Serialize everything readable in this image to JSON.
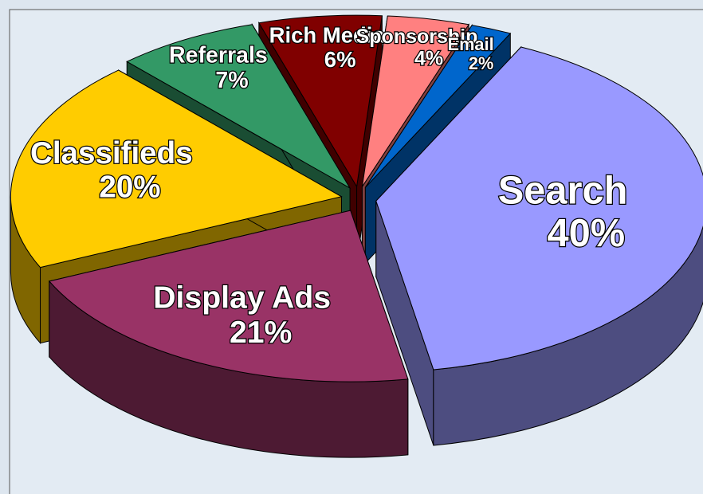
{
  "chart_data": {
    "type": "pie",
    "categories": [
      "Search",
      "Display Ads",
      "Classifieds",
      "Referrals",
      "Rich Media",
      "Sponsorship",
      "Email"
    ],
    "values": [
      40,
      21,
      20,
      7,
      6,
      4,
      2
    ],
    "value_labels": [
      "40%",
      "21%",
      "20%",
      "7%",
      "6%",
      "4%",
      "2%"
    ],
    "colors": [
      "#9999ff",
      "#993366",
      "#ffcc00",
      "#339966",
      "#800000",
      "#ff8080",
      "#0066cc"
    ]
  }
}
